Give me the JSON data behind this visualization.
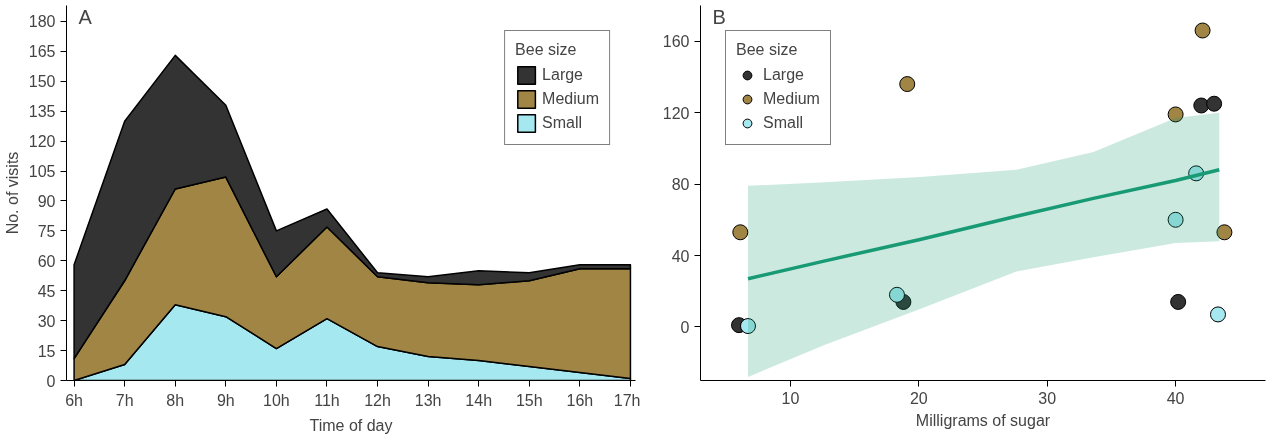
{
  "chart_data": [
    {
      "type": "area",
      "stacked": true,
      "title": "A",
      "xlabel": "Time of day",
      "ylabel": "No. of visits",
      "legend_title": "Bee size",
      "legend": "top right",
      "grid": false,
      "categories": [
        "6h",
        "7h",
        "8h",
        "9h",
        "10h",
        "11h",
        "12h",
        "13h",
        "14h",
        "15h",
        "16h",
        "17h"
      ],
      "ylim": [
        0,
        188
      ],
      "yticks": [
        0,
        15,
        30,
        45,
        60,
        75,
        90,
        105,
        120,
        135,
        150,
        165,
        180
      ],
      "series": [
        {
          "name": "Small",
          "color": "#a6e8ef",
          "values": [
            0,
            8,
            38,
            32,
            16,
            31,
            17,
            12,
            10,
            7,
            4,
            1
          ]
        },
        {
          "name": "Medium",
          "color": "#a08545",
          "values": [
            11,
            42,
            58,
            70,
            36,
            46,
            35,
            37,
            38,
            43,
            52,
            55
          ]
        },
        {
          "name": "Large",
          "color": "#333333",
          "values": [
            47,
            80,
            67,
            36,
            23,
            9,
            2,
            3,
            7,
            4,
            2,
            2
          ]
        }
      ]
    },
    {
      "type": "scatter",
      "title": "B",
      "xlabel": "Milligrams of sugar",
      "legend_title": "Bee size",
      "legend": "top left",
      "grid": false,
      "marker": "circle",
      "xlim": [
        3,
        47
      ],
      "xticks": [
        10,
        20,
        30,
        40
      ],
      "ylim": [
        -30,
        180
      ],
      "yticks": [
        0,
        40,
        80,
        120,
        160
      ],
      "series": [
        {
          "name": "Large",
          "color": "#333333",
          "x": [
            6.0,
            18.8,
            40.2,
            42.0,
            43.0
          ],
          "values": [
            1,
            14,
            14,
            124,
            125
          ]
        },
        {
          "name": "Medium",
          "color": "#a08545",
          "x": [
            6.1,
            19.1,
            40.0,
            42.1,
            43.8
          ],
          "values": [
            53,
            136,
            119,
            166,
            53
          ]
        },
        {
          "name": "Small",
          "color": "#a6e8ef",
          "x": [
            6.7,
            18.3,
            40.0,
            41.6,
            43.3
          ],
          "values": [
            0.5,
            18,
            60,
            86,
            7
          ]
        },
        {
          "type": "line",
          "marker": "none",
          "color": "#189a74",
          "x": [
            6.7,
            12.7,
            20.1,
            27.6,
            33.6,
            40.0,
            43.4
          ],
          "values": [
            27,
            37,
            49,
            62,
            72,
            82,
            88
          ],
          "lower": [
            -28,
            -10,
            10,
            31,
            39,
            47,
            48
          ],
          "upper": [
            79,
            81,
            84,
            88,
            98,
            117,
            120
          ]
        }
      ]
    }
  ]
}
